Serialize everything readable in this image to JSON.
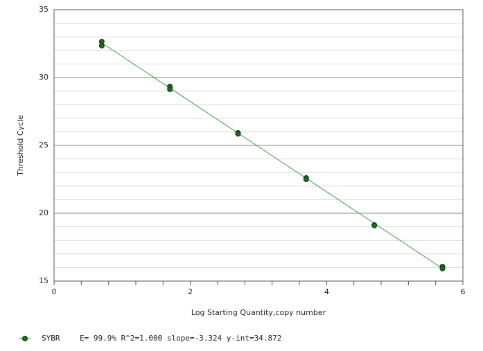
{
  "chart_data": {
    "type": "scatter",
    "y_label": "Threshold Cycle",
    "x_label": "Log Starting Quantity,copy number",
    "xlim": [
      0,
      6
    ],
    "xticks": [
      0,
      2,
      4,
      6
    ],
    "xminor_ticks": [
      0.4,
      0.8,
      1.2,
      1.6,
      2.4,
      2.8,
      3.2,
      3.6,
      4.4,
      4.8,
      5.2,
      5.6
    ],
    "ylim": [
      15,
      35
    ],
    "yticks": [
      15,
      20,
      25,
      30,
      35
    ],
    "yminor_ticks": [
      16,
      17,
      18,
      19,
      21,
      22,
      23,
      24,
      26,
      27,
      28,
      29,
      31,
      32,
      33,
      34
    ],
    "grid": true,
    "series": [
      {
        "name": "SYBR",
        "color": "#1e6b1e",
        "line_color": "#3c9c3c",
        "x": [
          0.7,
          0.7,
          1.7,
          1.7,
          2.7,
          2.7,
          3.7,
          3.7,
          4.7,
          4.7,
          5.7,
          5.7
        ],
        "values": [
          32.65,
          32.35,
          29.34,
          29.13,
          25.92,
          25.85,
          22.6,
          22.5,
          19.13,
          19.1,
          16.07,
          15.92
        ],
        "fit_x": [
          0.7,
          5.7
        ],
        "fit_y": [
          32.55,
          15.93
        ],
        "annotation": "E= 99.9% R^2=1.000 slope=-3.324 y-int=34.872"
      }
    ]
  }
}
